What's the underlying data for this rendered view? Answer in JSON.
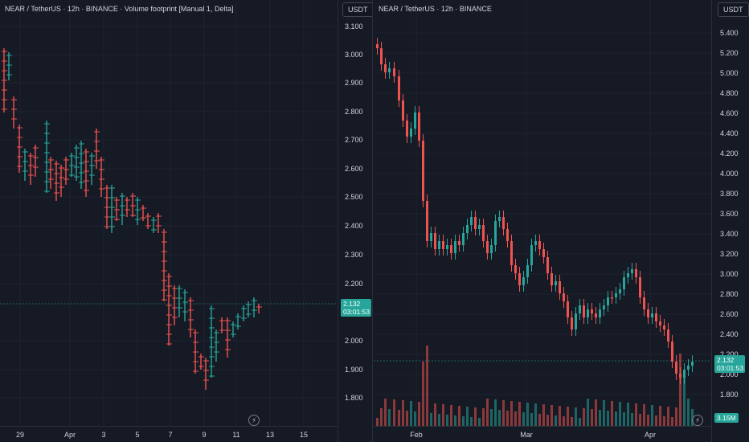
{
  "left_chart": {
    "title": "NEAR / TetherUS · 12h · BINANCE · Volume footprint [Manual 1, Delta]",
    "currency": "USDT",
    "price_ticks": [
      "3.100",
      "3.000",
      "2.900",
      "2.800",
      "2.700",
      "2.600",
      "2.500",
      "2.400",
      "2.300",
      "2.200",
      "2.000",
      "1.900",
      "1.800"
    ],
    "time_labels": [
      "29",
      "Apr",
      "3",
      "5",
      "7",
      "9",
      "11",
      "13",
      "15"
    ],
    "last_price": "2.132",
    "countdown": "03:01:53",
    "jump_icon": "lightning-bolt-icon"
  },
  "right_chart": {
    "title": "NEAR / TetherUS · 12h · BINANCE",
    "currency": "USDT",
    "price_ticks": [
      "5.400",
      "5.200",
      "5.000",
      "4.800",
      "4.600",
      "4.400",
      "4.200",
      "4.000",
      "3.800",
      "3.600",
      "3.400",
      "3.200",
      "3.000",
      "2.800",
      "2.600",
      "2.400",
      "2.200",
      "2.000",
      "1.800"
    ],
    "time_labels": [
      "Feb",
      "Mar",
      "Apr"
    ],
    "last_price": "2.132",
    "countdown": "03:01:53",
    "volume_value": "3.15M",
    "jump_icon": "lightning-bolt-icon"
  },
  "colors": {
    "up": "#26a69a",
    "down": "#ef5350",
    "grid": "#1f2330",
    "background": "#161a25"
  }
}
